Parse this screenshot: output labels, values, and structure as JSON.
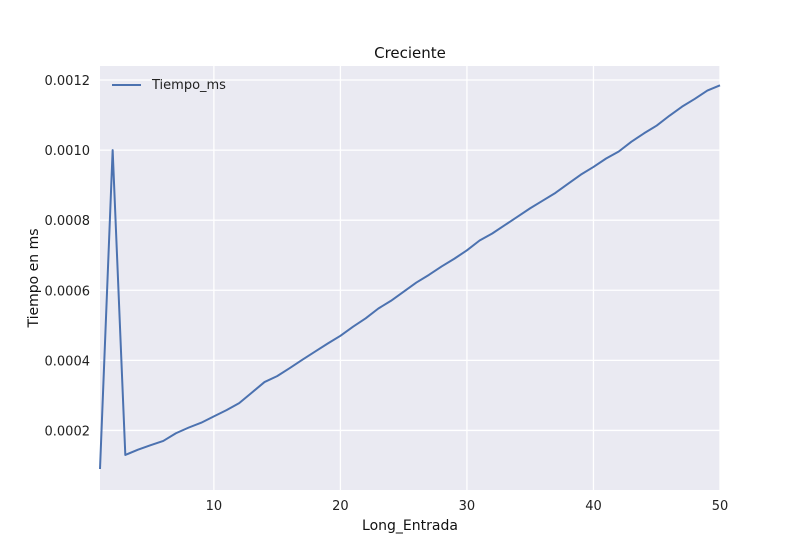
{
  "chart_data": {
    "type": "line",
    "title": "Creciente",
    "xlabel": "Long_Entrada",
    "ylabel": "Tiempo en ms",
    "xlim": [
      1,
      50
    ],
    "ylim": [
      3e-05,
      0.00124
    ],
    "xticks": [
      10,
      20,
      30,
      40,
      50
    ],
    "xtick_labels": [
      "10",
      "20",
      "30",
      "40",
      "50"
    ],
    "yticks": [
      0.0002,
      0.0004,
      0.0006,
      0.0008,
      0.001,
      0.0012
    ],
    "ytick_labels": [
      "0.0002",
      "0.0004",
      "0.0006",
      "0.0008",
      "0.0010",
      "0.0012"
    ],
    "grid": true,
    "legend": {
      "position": "upper-left",
      "entries": [
        "Tiempo_ms"
      ]
    },
    "colors": {
      "series": "#4c72b0",
      "plot_background": "#eaeaf2",
      "grid": "#ffffff"
    },
    "series": [
      {
        "name": "Tiempo_ms",
        "x": [
          1,
          2,
          3,
          4,
          5,
          6,
          7,
          8,
          9,
          10,
          11,
          12,
          13,
          14,
          15,
          16,
          17,
          18,
          19,
          20,
          21,
          22,
          23,
          24,
          25,
          26,
          27,
          28,
          29,
          30,
          31,
          32,
          33,
          34,
          35,
          36,
          37,
          38,
          39,
          40,
          41,
          42,
          43,
          44,
          45,
          46,
          47,
          48,
          49,
          50
        ],
        "values": [
          9e-05,
          0.001,
          0.00013,
          0.000145,
          0.000158,
          0.00017,
          0.000192,
          0.000208,
          0.000222,
          0.00024,
          0.000258,
          0.000278,
          0.000308,
          0.000338,
          0.000355,
          0.000378,
          0.000402,
          0.000425,
          0.000448,
          0.00047,
          0.000496,
          0.00052,
          0.000548,
          0.00057,
          0.000596,
          0.000622,
          0.000644,
          0.000668,
          0.00069,
          0.000714,
          0.000742,
          0.000762,
          0.000786,
          0.00081,
          0.000834,
          0.000856,
          0.000878,
          0.000904,
          0.00093,
          0.000952,
          0.000976,
          0.000996,
          0.001024,
          0.001048,
          0.00107,
          0.001098,
          0.001124,
          0.001146,
          0.00117,
          0.001185
        ]
      }
    ]
  }
}
